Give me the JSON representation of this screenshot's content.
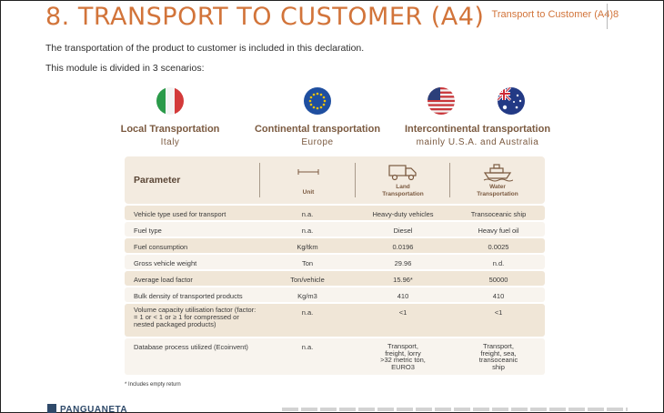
{
  "header": {
    "title": "8. TRANSPORT TO CUSTOMER (A4)",
    "section": "Transport to Customer (A4)",
    "page_number": "8"
  },
  "intro": {
    "line1": "The transportation of the product to customer is included in this declaration.",
    "line2": "This module is divided in 3 scenarios:"
  },
  "scenarios": [
    {
      "title": "Local Transportation",
      "subtitle": "Italy",
      "flag": "italy-flag"
    },
    {
      "title": "Continental transportation",
      "subtitle": "Europe",
      "flag": "eu-flag"
    },
    {
      "title": "Intercontinental transportation",
      "subtitle": "mainly U.S.A. and Australia",
      "flags": [
        "usa-flag",
        "australia-flag"
      ]
    }
  ],
  "table": {
    "header": {
      "parameter": "Parameter",
      "unit": "Unit",
      "land": "Land\nTransportation",
      "water": "Water\nTransportation"
    },
    "rows": [
      {
        "parameter": "Vehicle type used for transport",
        "unit": "n.a.",
        "land": "Heavy-duty vehicles",
        "water": "Transoceanic ship"
      },
      {
        "parameter": "Fuel type",
        "unit": "n.a.",
        "land": "Diesel",
        "water": "Heavy fuel oil"
      },
      {
        "parameter": "Fuel consumption",
        "unit": "Kg/tkm",
        "land": "0.0196",
        "water": "0.0025"
      },
      {
        "parameter": "Gross vehicle weight",
        "unit": "Ton",
        "land": "29.96",
        "water": "n.d."
      },
      {
        "parameter": "Average load factor",
        "unit": "Ton/vehicle",
        "land": "15.96*",
        "water": "50000"
      },
      {
        "parameter": "Bulk density of transported products",
        "unit": "Kg/m3",
        "land": "410",
        "water": "410"
      },
      {
        "parameter": "Volume capacity utilisation factor (factor: = 1 or < 1 or ≥ 1 for compressed or nested packaged products)",
        "unit": "n.a.",
        "land": "<1",
        "water": "<1"
      },
      {
        "parameter": "Database process utilized (Ecoinvent)",
        "unit": "n.a.",
        "land": "Transport, freight, lorry >32 metric ton, EURO3",
        "water": "Transport, freight, sea, transoceanic ship"
      }
    ]
  },
  "footnote": "* Includes empty return",
  "logo": "PANGUANETA",
  "colors": {
    "accent": "#d2743a",
    "table_band": "#f0e6d7",
    "table_light": "#f8f4ee",
    "heading_brown": "#7b5a40"
  }
}
